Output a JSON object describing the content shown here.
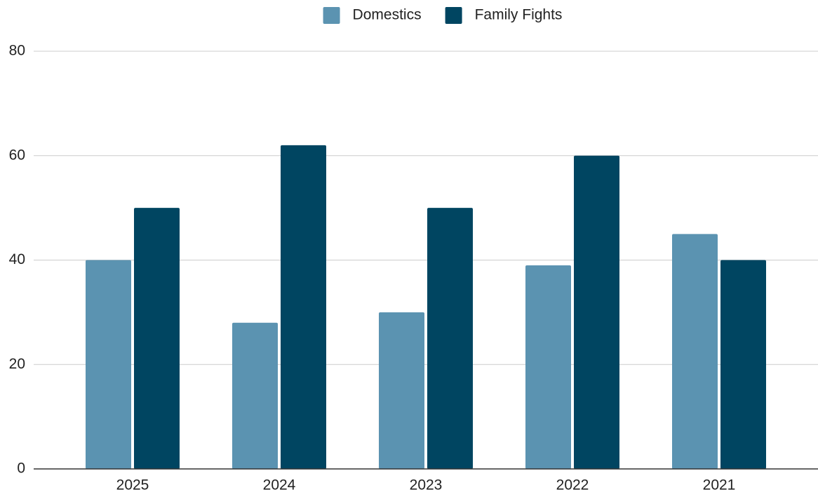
{
  "chart_data": {
    "type": "bar",
    "categories": [
      "2025",
      "2024",
      "2023",
      "2022",
      "2021"
    ],
    "series": [
      {
        "name": "Domestics",
        "color": "#5b93b1",
        "values": [
          40,
          28,
          30,
          39,
          45
        ]
      },
      {
        "name": "Family Fights",
        "color": "#004561",
        "values": [
          50,
          62,
          50,
          60,
          40
        ]
      }
    ],
    "ylim": [
      0,
      80
    ],
    "yticks": [
      0,
      20,
      40,
      60,
      80
    ],
    "grid": true,
    "legend": "top"
  }
}
